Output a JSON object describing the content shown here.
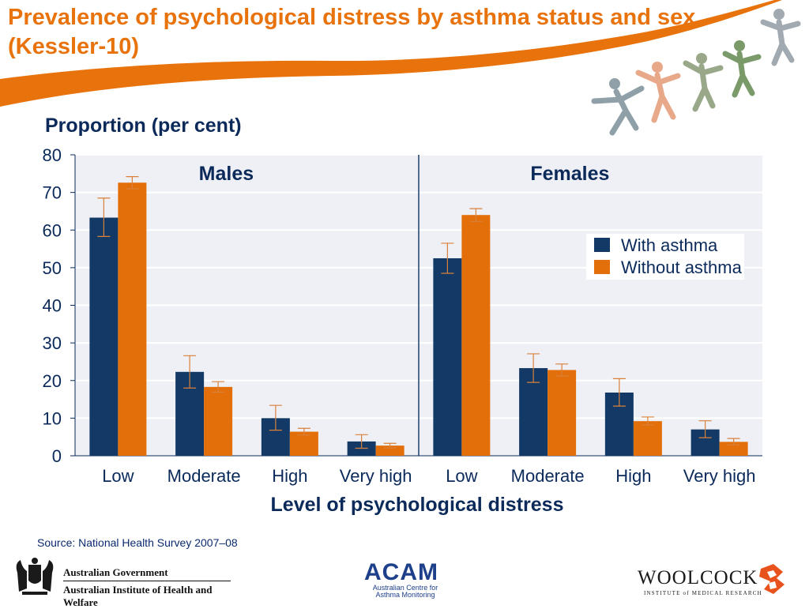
{
  "slide": {
    "title": "Prevalence of psychological distress by asthma status and sex (Kessler-10)",
    "source": "Source: National Health Survey 2007–08",
    "accent_color": "#e8730c"
  },
  "chart_data": {
    "type": "bar",
    "ylabel": "Proportion (per cent)",
    "xlabel": "Level of psychological distress",
    "ylim": [
      0,
      80
    ],
    "yticks": [
      0,
      10,
      20,
      30,
      40,
      50,
      60,
      70,
      80
    ],
    "grid": true,
    "legend_position": "right",
    "panels": [
      {
        "title": "Males",
        "categories": [
          "Low",
          "Moderate",
          "High",
          "Very high"
        ],
        "series": [
          {
            "name": "With asthma",
            "color": "#133a66",
            "values": [
              63.3,
              22.3,
              10.0,
              3.8
            ],
            "error_low": [
              58.3,
              18.0,
              6.8,
              2.0
            ],
            "error_high": [
              68.5,
              26.6,
              13.4,
              5.6
            ]
          },
          {
            "name": "Without asthma",
            "color": "#e36f0a",
            "values": [
              72.6,
              18.3,
              6.4,
              2.7
            ],
            "error_low": [
              71.0,
              16.9,
              5.5,
              2.1
            ],
            "error_high": [
              74.2,
              19.7,
              7.3,
              3.3
            ]
          }
        ]
      },
      {
        "title": "Females",
        "categories": [
          "Low",
          "Moderate",
          "High",
          "Very high"
        ],
        "series": [
          {
            "name": "With asthma",
            "color": "#133a66",
            "values": [
              52.5,
              23.3,
              16.8,
              7.0
            ],
            "error_low": [
              48.5,
              19.5,
              13.2,
              4.8
            ],
            "error_high": [
              56.5,
              27.1,
              20.5,
              9.3
            ]
          },
          {
            "name": "Without asthma",
            "color": "#e36f0a",
            "values": [
              64.0,
              22.8,
              9.2,
              3.7
            ],
            "error_low": [
              62.3,
              21.2,
              8.2,
              2.9
            ],
            "error_high": [
              65.7,
              24.4,
              10.3,
              4.6
            ]
          }
        ]
      }
    ]
  },
  "logos": {
    "gov_line1": "Australian Government",
    "gov_line2": "Australian Institute of Health and Welfare",
    "acam": "ACAM",
    "acam_sub1": "Australian Centre for",
    "acam_sub2": "Asthma Monitoring",
    "woolcock": "WOOLCOCK",
    "woolcock_sub": "INSTITUTE of MEDICAL RESEARCH"
  }
}
